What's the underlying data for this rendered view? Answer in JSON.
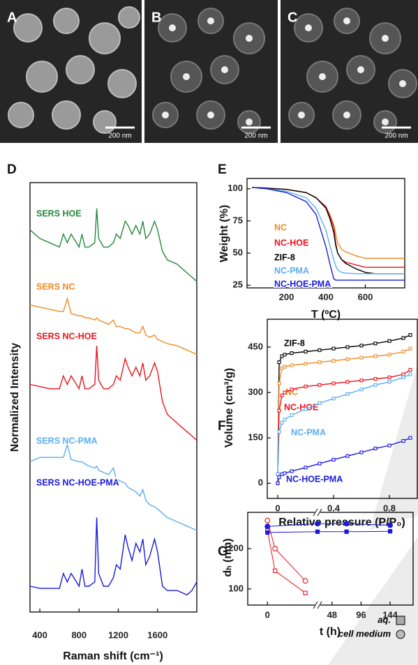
{
  "images": [
    {
      "label": "A",
      "scale_bar": "200 nm"
    },
    {
      "label": "B",
      "scale_bar": "200 nm"
    },
    {
      "label": "C",
      "scale_bar": "200 nm"
    }
  ],
  "chart_data": [
    {
      "panel": "D",
      "type": "line",
      "y_label": "Normalized Intensity",
      "x_label": "Raman shift (cm⁻¹)",
      "x": [
        300,
        400,
        500,
        600,
        640,
        680,
        720,
        800,
        830,
        860,
        900,
        960,
        980,
        1000,
        1050,
        1100,
        1150,
        1180,
        1220,
        1270,
        1300,
        1340,
        1380,
        1420,
        1450,
        1480,
        1520,
        1570,
        1600,
        1650,
        1700,
        1800,
        1900,
        1950,
        2000
      ],
      "xlim": [
        300,
        2000
      ],
      "xticks": [
        400,
        800,
        1200,
        1600
      ],
      "ylim": [
        0,
        100
      ],
      "series": [
        {
          "name": "SERS HOE",
          "color": "#23893a",
          "values": [
            89,
            87,
            86,
            85,
            88,
            86,
            88,
            85,
            88,
            85,
            85,
            86,
            94,
            87,
            85,
            85,
            86,
            88,
            87,
            91,
            90,
            88,
            90,
            88,
            91,
            87,
            88,
            91,
            89,
            84,
            82,
            81,
            79,
            78,
            77
          ]
        },
        {
          "name": "SERS NC",
          "color": "#f08a24",
          "values": [
            71.5,
            71,
            70.5,
            70,
            70,
            73,
            69.5,
            69,
            69,
            68.5,
            68.5,
            68,
            68.5,
            68,
            67.5,
            67,
            68,
            66.5,
            66.5,
            66,
            66,
            65.5,
            65,
            65,
            66.5,
            64.5,
            64,
            64.5,
            63.5,
            63,
            62.5,
            62,
            61,
            60.5,
            60
          ]
        },
        {
          "name": "SERS NC-HOE",
          "color": "#e8141c",
          "values": [
            53,
            52.5,
            52,
            52,
            55,
            53,
            55,
            52,
            55,
            52,
            52,
            53,
            62,
            54,
            52,
            52,
            53,
            55,
            54,
            59,
            57,
            55,
            57,
            55,
            58,
            54,
            55,
            58,
            56,
            49,
            46,
            44,
            42,
            41,
            40
          ]
        },
        {
          "name": "SERS NC-PMA",
          "color": "#5aaef0",
          "values": [
            35,
            36,
            36,
            36,
            36,
            39,
            35.5,
            35,
            35,
            34.5,
            34,
            33.5,
            34,
            33,
            32.5,
            32,
            33.5,
            31,
            30.5,
            30,
            29,
            28.5,
            28,
            27,
            28.5,
            26,
            25,
            24.5,
            24,
            23,
            22,
            21,
            20,
            19.5,
            19
          ]
        },
        {
          "name": "SERS NC-HOE-PMA",
          "color": "#1a1adb",
          "values": [
            6,
            5.5,
            5.5,
            5.5,
            9,
            7,
            9,
            6,
            10,
            6,
            6,
            7,
            22,
            9,
            6,
            6,
            8,
            11,
            10,
            18,
            15,
            12,
            16,
            14,
            17,
            11,
            13,
            17,
            14,
            6,
            5,
            5,
            4,
            5,
            7
          ]
        }
      ]
    },
    {
      "panel": "E",
      "type": "line",
      "y_label": "Weight (%)",
      "x_label": "T (ºC)",
      "x": [
        25,
        100,
        200,
        300,
        350,
        400,
        420,
        440,
        450,
        460,
        480,
        500,
        550,
        600,
        650,
        700,
        800
      ],
      "xlim": [
        0,
        800
      ],
      "xticks": [
        200,
        400,
        600
      ],
      "ylim": [
        23,
        108
      ],
      "yticks": [
        25,
        50,
        75,
        100
      ],
      "series": [
        {
          "name": "NC",
          "color": "#f08a24",
          "values": [
            101,
            100.5,
            99.5,
            97,
            93,
            86,
            80,
            72,
            65,
            58,
            53,
            51,
            48,
            46,
            46,
            46,
            46
          ]
        },
        {
          "name": "NC-HOE",
          "color": "#e8141c",
          "values": [
            101,
            100.5,
            99.5,
            97,
            93,
            86,
            79,
            70,
            58,
            50,
            45,
            43,
            41,
            39,
            39,
            39,
            39
          ]
        },
        {
          "name": "ZIF-8",
          "color": "#000000",
          "values": [
            101,
            100.5,
            99.5,
            97,
            93,
            85,
            77,
            66,
            56,
            50,
            45,
            42,
            38,
            35,
            34,
            34,
            34
          ]
        },
        {
          "name": "NC-PMA",
          "color": "#5aaef0",
          "values": [
            101,
            100,
            98,
            93,
            85,
            68,
            56,
            45,
            40,
            37,
            35,
            34.5,
            34,
            34,
            34,
            34,
            34
          ]
        },
        {
          "name": "NC-HOE-PMA",
          "color": "#1a1adb",
          "values": [
            101,
            100,
            97,
            90,
            80,
            55,
            42,
            30,
            29,
            29,
            29,
            29,
            29,
            29,
            29,
            29,
            29
          ]
        }
      ]
    },
    {
      "panel": "F",
      "type": "line",
      "marker": "square",
      "y_label": "Volume (cm³/g)",
      "x_label": "Relative pressure (P/P₀)",
      "x": [
        0,
        0.01,
        0.03,
        0.05,
        0.1,
        0.2,
        0.3,
        0.4,
        0.5,
        0.6,
        0.7,
        0.8,
        0.9,
        0.95
      ],
      "xlim": [
        -0.075,
        1.0
      ],
      "xticks": [
        0,
        0.4,
        0.8
      ],
      "ylim": [
        -50,
        542
      ],
      "yticks": [
        0,
        150,
        300,
        450
      ],
      "series": [
        {
          "name": "ZIF-8",
          "color": "#000000",
          "values": [
            0,
            400,
            420,
            425,
            430,
            435,
            440,
            445,
            450,
            455,
            462,
            470,
            480,
            490
          ]
        },
        {
          "name": "NC",
          "color": "#f08a24",
          "values": [
            0,
            330,
            380,
            385,
            390,
            395,
            400,
            405,
            410,
            415,
            420,
            425,
            435,
            445
          ]
        },
        {
          "name": "NC-HOE",
          "color": "#e8141c",
          "values": [
            30,
            240,
            290,
            300,
            310,
            320,
            325,
            330,
            335,
            340,
            345,
            350,
            360,
            375
          ]
        },
        {
          "name": "NC-PMA",
          "color": "#5aaef0",
          "values": [
            30,
            170,
            200,
            210,
            225,
            245,
            265,
            280,
            295,
            310,
            325,
            335,
            350,
            360
          ]
        },
        {
          "name": "NC-HOE-PMA",
          "color": "#1a1adb",
          "values": [
            0,
            20,
            30,
            33,
            40,
            52,
            65,
            78,
            90,
            102,
            115,
            125,
            140,
            150
          ]
        }
      ]
    },
    {
      "panel": "G",
      "type": "scatter",
      "y_label": "dₕ (nm)",
      "x_label": "t (h)",
      "xlim": [
        [
          -2.6,
          6.6
        ],
        [
          24,
          182
        ]
      ],
      "xticks": [
        0,
        48,
        96,
        144
      ],
      "ylim": [
        60,
        290
      ],
      "yticks": [
        100,
        200
      ],
      "series": [
        {
          "color": "#e8141c",
          "marker": "circle",
          "filled": false,
          "x": [
            0,
            1,
            5
          ],
          "values": [
            270,
            200,
            120
          ]
        },
        {
          "color": "#e8141c",
          "marker": "square",
          "filled": false,
          "x": [
            0,
            1,
            5
          ],
          "values": [
            245,
            145,
            90
          ]
        },
        {
          "color": "#1a1adb",
          "marker": "circle",
          "filled": true,
          "x": [
            0,
            24,
            72,
            144
          ],
          "values": [
            255,
            262,
            262,
            258
          ]
        },
        {
          "color": "#1a1adb",
          "marker": "square",
          "filled": true,
          "x": [
            0,
            24,
            72,
            144
          ],
          "values": [
            240,
            242,
            242,
            243
          ]
        }
      ],
      "legend": [
        {
          "label": "aq.",
          "marker": "square"
        },
        {
          "label": "cell medium",
          "marker": "circle"
        }
      ]
    }
  ]
}
